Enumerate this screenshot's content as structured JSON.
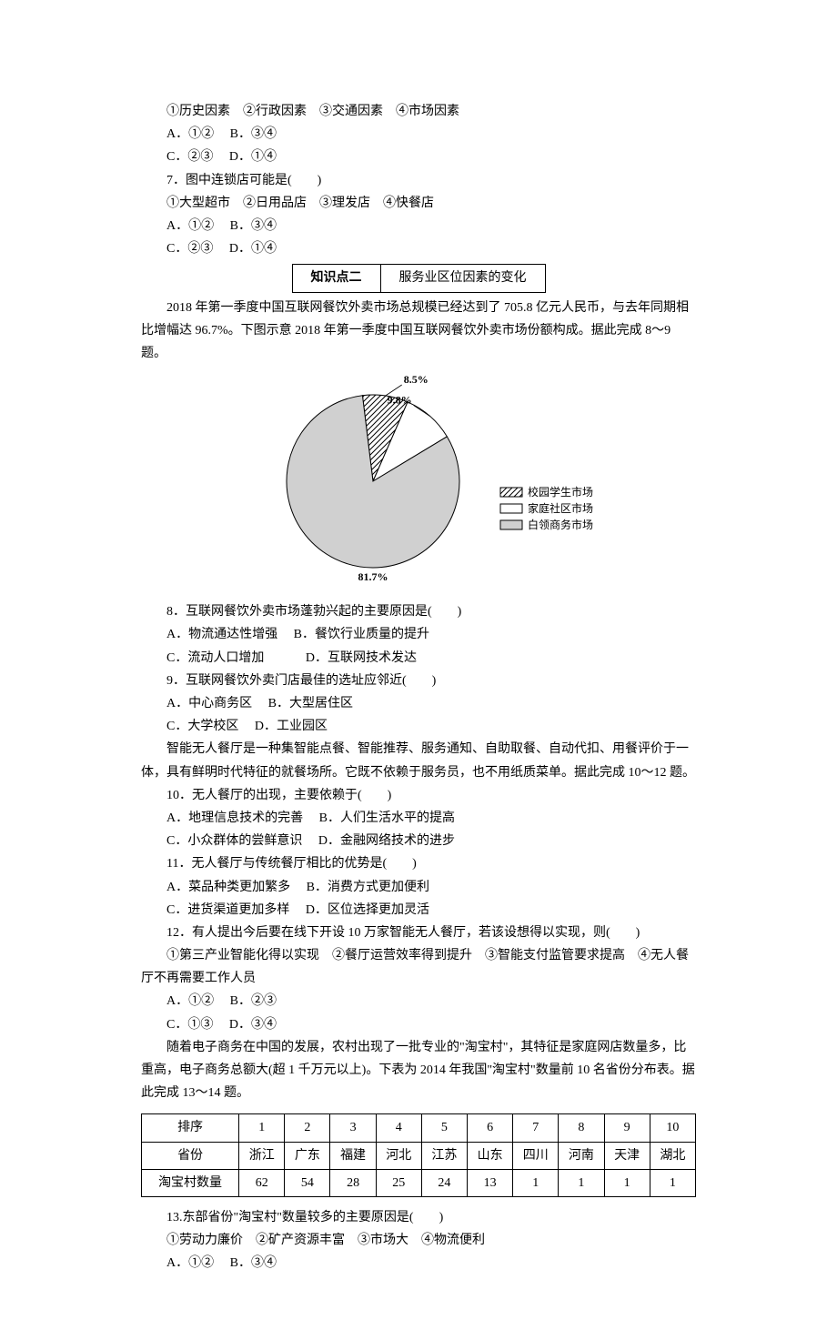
{
  "q6": {
    "options_line1": "①历史因素　②行政因素　③交通因素　④市场因素",
    "A": "A．①②",
    "B": "B．③④",
    "C": "C．②③",
    "D": "D．①④"
  },
  "q7": {
    "stem": "7．图中连锁店可能是(　　)",
    "options_line1": "①大型超市　②日用品店　③理发店　④快餐店",
    "A": "A．①②",
    "B": "B．③④",
    "C": "C．②③",
    "D": "D．①④"
  },
  "section2": {
    "label": "知识点二",
    "title": "服务业区位因素的变化"
  },
  "passage8_9": "2018 年第一季度中国互联网餐饮外卖市场总规模已经达到了 705.8 亿元人民币，与去年同期相比增幅达 96.7%。下图示意 2018 年第一季度中国互联网餐饮外卖市场份额构成。据此完成 8～9 题。",
  "pie": {
    "type": "pie",
    "slices": [
      {
        "label": "校园学生市场",
        "value": 8.5,
        "pattern": "hatched",
        "label_text": "8.5%"
      },
      {
        "label": "家庭社区市场",
        "value": 9.8,
        "color": "#ffffff",
        "label_text": "9.8%"
      },
      {
        "label": "白领商务市场",
        "value": 81.7,
        "color": "#d0d0d0",
        "label_text": "81.7%"
      }
    ],
    "legend": [
      {
        "swatch": "hatched",
        "text": "校园学生市场"
      },
      {
        "swatch": "#ffffff",
        "text": "家庭社区市场"
      },
      {
        "swatch": "#d0d0d0",
        "text": "白领商务市场"
      }
    ],
    "label_fontsize": 12,
    "legend_fontsize": 12,
    "radius": 95,
    "start_angle": -97,
    "stroke": "#000000"
  },
  "q8": {
    "stem": "8．互联网餐饮外卖市场蓬勃兴起的主要原因是(　　)",
    "A": "A．物流通达性增强",
    "B": "B．餐饮行业质量的提升",
    "C": "C．流动人口增加",
    "D": "D．互联网技术发达"
  },
  "q9": {
    "stem": "9．互联网餐饮外卖门店最佳的选址应邻近(　　)",
    "A": "A．中心商务区",
    "B": "B．大型居住区",
    "C": "C．大学校区",
    "D": "D．工业园区"
  },
  "passage10_12": "智能无人餐厅是一种集智能点餐、智能推荐、服务通知、自助取餐、自动代扣、用餐评价于一体，具有鲜明时代特征的就餐场所。它既不依赖于服务员，也不用纸质菜单。据此完成 10～12 题。",
  "q10": {
    "stem": "10．无人餐厅的出现，主要依赖于(　　)",
    "A": "A．地理信息技术的完善",
    "B": "B．人们生活水平的提高",
    "C": "C．小众群体的尝鲜意识",
    "D": "D．金融网络技术的进步"
  },
  "q11": {
    "stem": "11．无人餐厅与传统餐厅相比的优势是(　　)",
    "A": "A．菜品种类更加繁多",
    "B": "B．消费方式更加便利",
    "C": "C．进货渠道更加多样",
    "D": "D．区位选择更加灵活"
  },
  "q12": {
    "stem": "12．有人提出今后要在线下开设 10 万家智能无人餐厅，若该设想得以实现，则(　　)",
    "options_line1": "①第三产业智能化得以实现　②餐厅运营效率得到提升　③智能支付监管要求提高　④无人餐厅不再需要工作人员",
    "A": "A．①②",
    "B": "B．②③",
    "C": "C．①③",
    "D": "D．③④"
  },
  "passage13_14": "随着电子商务在中国的发展，农村出现了一批专业的\"淘宝村\"，其特征是家庭网店数量多，比重高，电子商务总额大(超 1 千万元以上)。下表为 2014 年我国\"淘宝村\"数量前 10 名省份分布表。据此完成 13～14 题。",
  "table": {
    "headers": [
      "排序",
      "1",
      "2",
      "3",
      "4",
      "5",
      "6",
      "7",
      "8",
      "9",
      "10"
    ],
    "row_province_label": "省份",
    "provinces": [
      "浙江",
      "广东",
      "福建",
      "河北",
      "江苏",
      "山东",
      "四川",
      "河南",
      "天津",
      "湖北"
    ],
    "row_count_label": "淘宝村数量",
    "counts": [
      "62",
      "54",
      "28",
      "25",
      "24",
      "13",
      "1",
      "1",
      "1",
      "1"
    ]
  },
  "q13": {
    "stem": "13.东部省份\"淘宝村\"数量较多的主要原因是(　　)",
    "options_line1": "①劳动力廉价　②矿产资源丰富　③市场大　④物流便利",
    "A": "A．①②",
    "B": "B．③④"
  }
}
